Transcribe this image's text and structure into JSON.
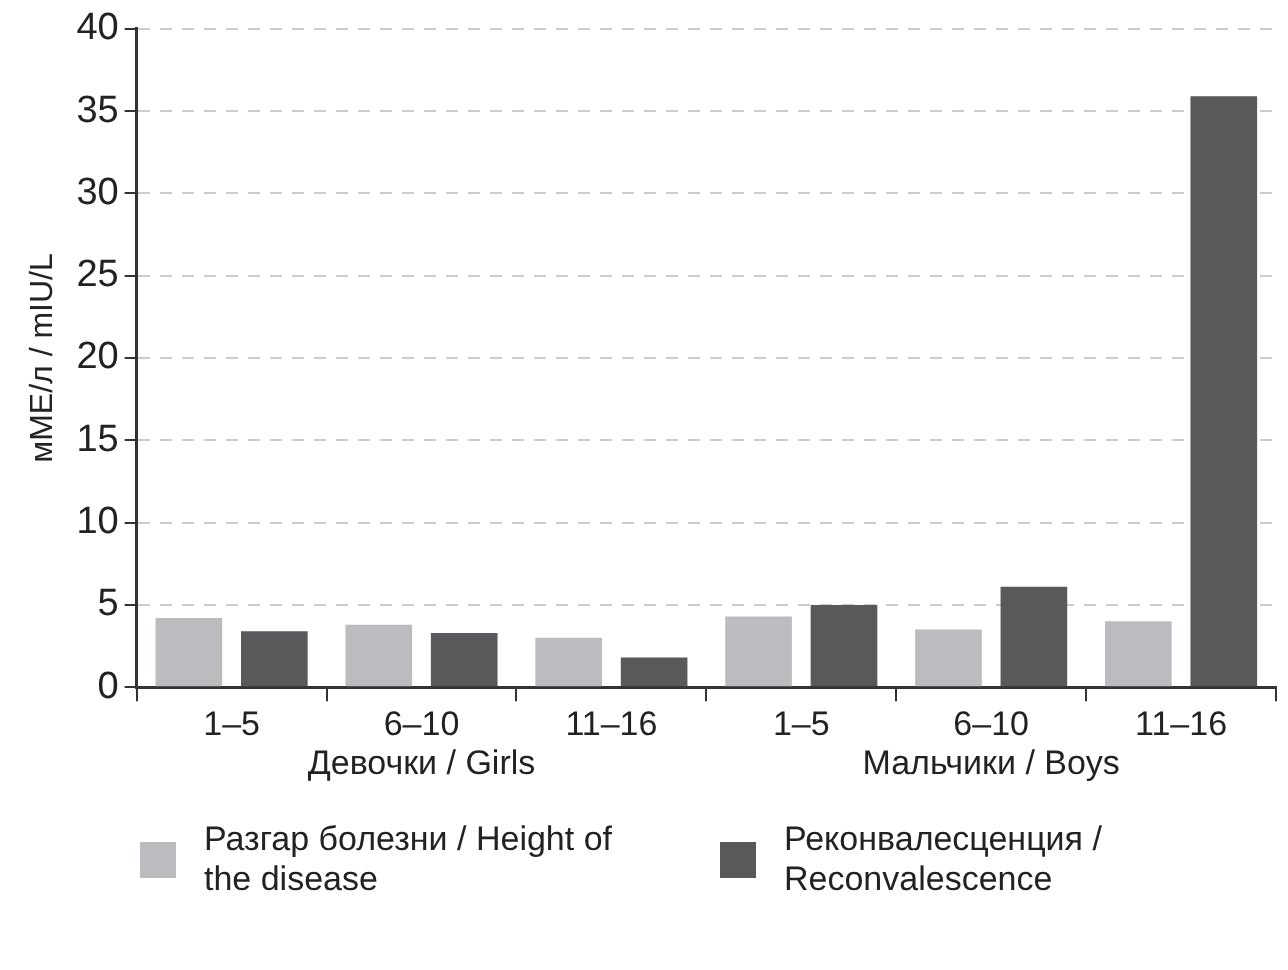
{
  "chart_data": {
    "type": "bar",
    "ylabel": "мМЕ/л / mIU/L",
    "categories": [
      "1–5",
      "6–10",
      "11–16",
      "1–5",
      "6–10",
      "11–16"
    ],
    "annotations": [
      "Девочки / Girls",
      "Мальчики / Boys"
    ],
    "series": [
      {
        "name": "Разгар болезни / Height of the disease",
        "color": "#bbbcbf",
        "values": [
          4.2,
          3.8,
          3.0,
          4.3,
          3.5,
          4.0
        ]
      },
      {
        "name": "Реконвалесценция / Reconvalescence",
        "color": "#58595b",
        "values": [
          3.4,
          3.3,
          1.8,
          5.0,
          6.1,
          35.9
        ]
      }
    ],
    "ylim": [
      0,
      40
    ],
    "yticks": [
      0,
      5,
      10,
      15,
      20,
      25,
      30,
      35,
      40
    ],
    "grid": "y",
    "legend": "bottom"
  }
}
